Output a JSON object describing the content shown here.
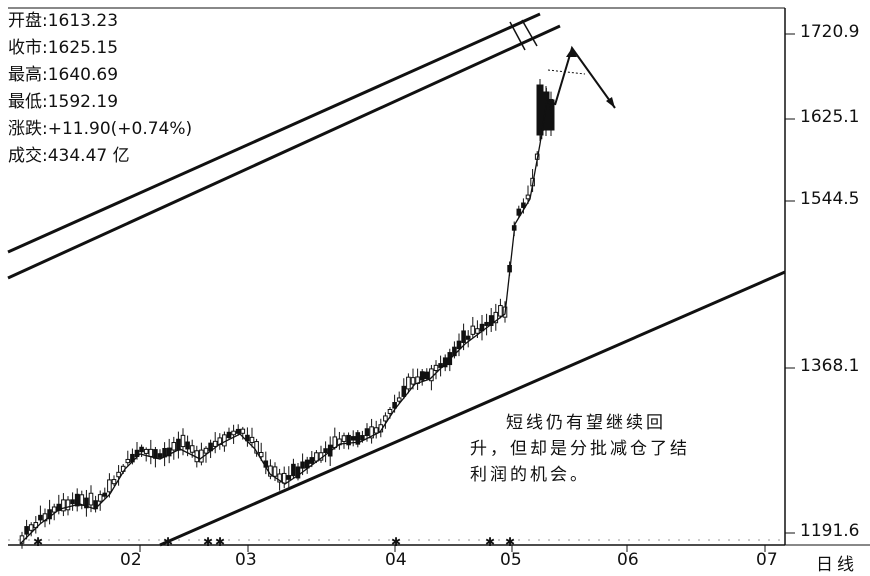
{
  "ohlc_panel": {
    "open": "开盘:1613.23",
    "close": "收市:1625.15",
    "high": "最高:1640.69",
    "low": "最低:1592.19",
    "change": "涨跌:+11.90(+0.74%)",
    "volume": "成交:434.47 亿"
  },
  "annotation": {
    "line1": "短线仍有望继续回",
    "line2": "升，但却是分批减仓了结",
    "line3": "利润的机会。"
  },
  "period_label": "日线",
  "chart_data": {
    "type": "candlestick",
    "x_ticks": [
      "02",
      "03",
      "04",
      "05",
      "06",
      "07"
    ],
    "y_ticks": [
      1720.9,
      1625.1,
      1544.5,
      1368.1,
      1191.6
    ],
    "ylim": [
      1191.6,
      1720.9
    ],
    "last_bar": {
      "open": 1613.23,
      "close": 1625.15,
      "high": 1640.69,
      "low": 1592.19
    },
    "colors": {
      "line": "#111111",
      "grid": "#999999"
    }
  }
}
